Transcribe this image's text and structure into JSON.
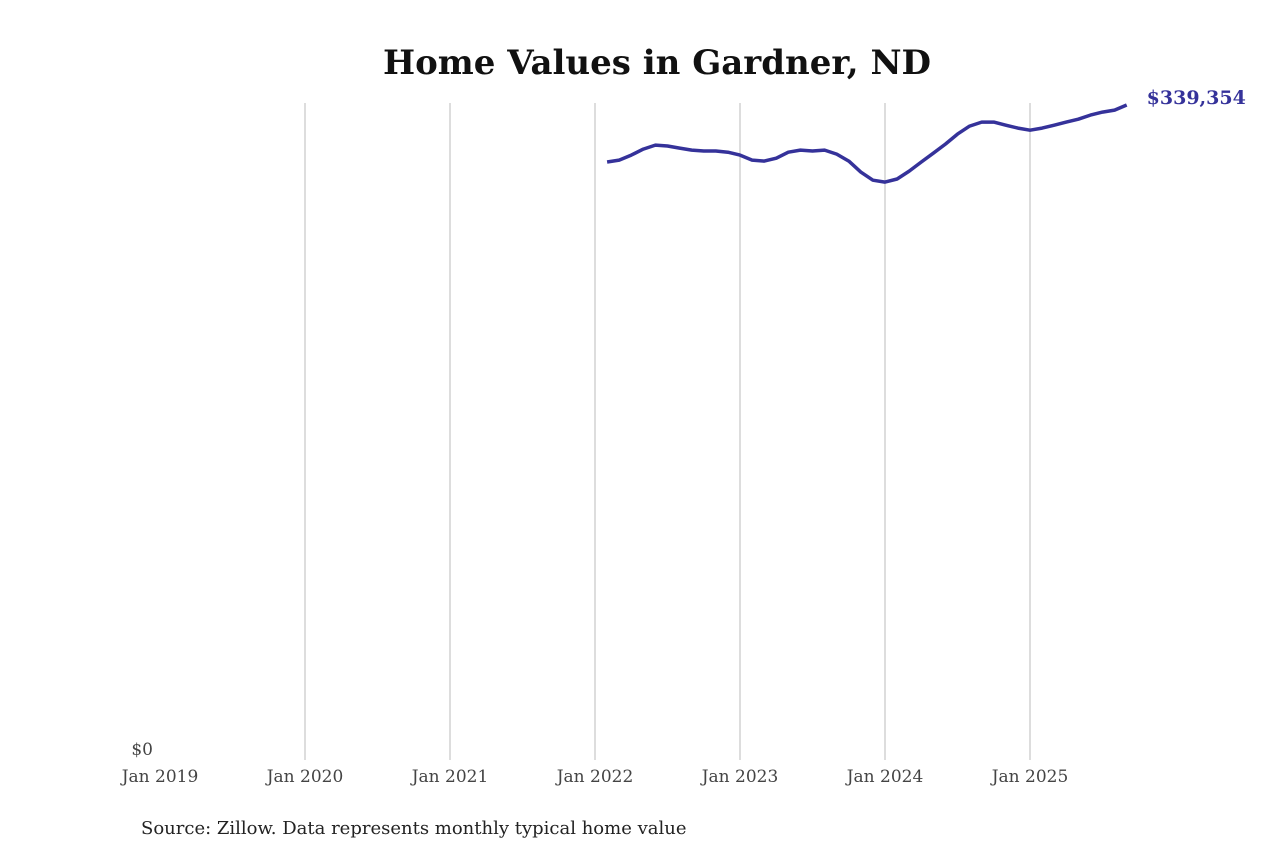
{
  "chart_data": {
    "type": "line",
    "title": "Home Values in Gardner, ND",
    "source": "Source: Zillow. Data represents monthly typical home value",
    "x_ticks": [
      "Jan 2019",
      "Jan 2020",
      "Jan 2021",
      "Jan 2022",
      "Jan 2023",
      "Jan 2024",
      "Jan 2025"
    ],
    "y_ticks": [
      "$0"
    ],
    "ylim": [
      0,
      339354
    ],
    "xlim": [
      "2019-01",
      "2025-09"
    ],
    "grid": "vertical",
    "line_color": "#35329a",
    "end_label": "$339,354",
    "x": [
      "2022-02",
      "2022-03",
      "2022-04",
      "2022-05",
      "2022-06",
      "2022-07",
      "2022-08",
      "2022-09",
      "2022-10",
      "2022-11",
      "2022-12",
      "2023-01",
      "2023-02",
      "2023-03",
      "2023-04",
      "2023-05",
      "2023-06",
      "2023-07",
      "2023-08",
      "2023-09",
      "2023-10",
      "2023-11",
      "2023-12",
      "2024-01",
      "2024-02",
      "2024-03",
      "2024-04",
      "2024-05",
      "2024-06",
      "2024-07",
      "2024-08",
      "2024-09",
      "2024-10",
      "2024-11",
      "2024-12",
      "2025-01",
      "2025-02",
      "2025-03",
      "2025-04",
      "2025-05",
      "2025-06",
      "2025-07",
      "2025-08",
      "2025-09"
    ],
    "values": [
      309800,
      310800,
      313400,
      316500,
      318600,
      318100,
      317000,
      316000,
      315500,
      315500,
      314900,
      313400,
      310800,
      310300,
      311800,
      314900,
      316000,
      315500,
      316000,
      313900,
      310300,
      304600,
      300400,
      299400,
      301000,
      305100,
      309800,
      314400,
      319100,
      324300,
      328400,
      330500,
      330500,
      328900,
      327400,
      326300,
      327400,
      328900,
      330500,
      332000,
      334100,
      335700,
      336700,
      339354
    ]
  }
}
